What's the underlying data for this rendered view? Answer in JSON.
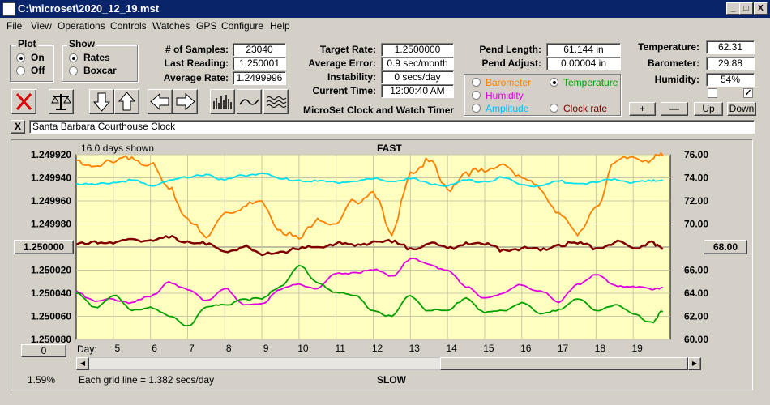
{
  "window": {
    "title": "C:\\microset\\2020_12_19.mst",
    "controls": [
      "_",
      "□",
      "X"
    ]
  },
  "menu": [
    "File",
    "View",
    "Operations",
    "Controls",
    "Watches",
    "GPS",
    "Configure",
    "Help"
  ],
  "plot_group": {
    "title": "Plot",
    "options": [
      "On",
      "Off"
    ],
    "selected": "On"
  },
  "show_group": {
    "title": "Show",
    "options": [
      "Rates",
      "Boxcar"
    ],
    "selected": "Rates"
  },
  "stats": {
    "samples_label": "# of Samples:",
    "samples_value": "23040",
    "last_label": "Last Reading:",
    "last_value": "1.250001",
    "avg_label": "Average Rate:",
    "avg_value": "1.2499996",
    "target_label": "Target Rate:",
    "target_value": "1.2500000",
    "err_label": "Average Error:",
    "err_value": "0.9 sec/month",
    "instab_label": "Instability:",
    "instab_value": "0 secs/day",
    "time_label": "Current Time:",
    "time_value": "12:00:40 AM",
    "app_caption": "MicroSet Clock and Watch Timer",
    "pend_len_label": "Pend Length:",
    "pend_len_value": "61.144 in",
    "pend_adj_label": "Pend Adjust:",
    "pend_adj_value": "0.00004 in",
    "temp_label": "Temperature:",
    "temp_value": "62.31",
    "baro_label": "Barometer:",
    "baro_value": "29.88",
    "hum_label": "Humidity:",
    "hum_value": "54%"
  },
  "series_selector": {
    "items": [
      {
        "label": "Barometer",
        "color": "#ff8000",
        "selected": false
      },
      {
        "label": "Temperature",
        "color": "#00a000",
        "selected": true
      },
      {
        "label": "Humidity",
        "color": "#e000e0",
        "selected": false
      },
      {
        "label": "Amplitude",
        "color": "#00c0ff",
        "selected": false
      },
      {
        "label": "Clock rate",
        "color": "#800000",
        "selected": false
      }
    ]
  },
  "scale_buttons": [
    "+",
    "—",
    "Up",
    "Down"
  ],
  "toolbar_icons": [
    "stop-icon",
    "balance-icon",
    "arrow-down-icon",
    "arrow-up-icon",
    "arrow-left-icon",
    "arrow-right-icon",
    "bars-icon",
    "wave-icon",
    "waves-icon"
  ],
  "description": {
    "close_label": "X",
    "value": "Santa Barbara Courthouse Clock"
  },
  "plot": {
    "days_shown": "16.0 days shown",
    "top_label": "FAST",
    "bottom_label": "SLOW",
    "left_ref_button": "1.250000",
    "right_ref_button": "68.00",
    "offset_button": "0",
    "percent": "1.59%",
    "grid_note": "Each grid line = 1.382 secs/day",
    "day_label": "Day:"
  },
  "chart_data": {
    "type": "line",
    "x": [
      4.0,
      4.5,
      5.0,
      5.5,
      6.0,
      6.5,
      7.0,
      7.5,
      8.0,
      8.5,
      9.0,
      9.5,
      10.0,
      10.5,
      11.0,
      11.5,
      12.0,
      12.5,
      13.0,
      13.5,
      14.0,
      14.5,
      15.0,
      15.5,
      16.0,
      16.5,
      17.0,
      17.5,
      18.0,
      18.5,
      19.0,
      19.5,
      19.8
    ],
    "xlabel": "Day:",
    "xticks": [
      5,
      6,
      7,
      8,
      9,
      10,
      11,
      12,
      13,
      14,
      15,
      16,
      17,
      18,
      19
    ],
    "xlim": [
      4.0,
      20.0
    ],
    "left_axis": {
      "ticks": [
        "1.249920",
        "1.249940",
        "1.249960",
        "1.249980",
        "1.250000",
        "1.250020",
        "1.250040",
        "1.250060",
        "1.250080"
      ],
      "inverted": true
    },
    "right_axis": {
      "ticks": [
        "76.00",
        "74.00",
        "72.00",
        "70.00",
        "68.00",
        "66.00",
        "64.00",
        "62.00",
        "60.00"
      ],
      "ylim": [
        60,
        76
      ]
    },
    "series": [
      {
        "name": "Barometer",
        "color": "#ff8000",
        "values": [
          75.5,
          75.0,
          75.3,
          75.8,
          75.2,
          73.0,
          70.5,
          68.8,
          71.0,
          71.5,
          72.0,
          69.5,
          68.7,
          70.5,
          70.0,
          72.0,
          72.8,
          69.0,
          74.5,
          75.4,
          73.0,
          74.5,
          74.5,
          75.2,
          74.0,
          73.0,
          71.0,
          69.0,
          71.5,
          75.3,
          75.8,
          75.6,
          75.9
        ]
      },
      {
        "name": "Amplitude",
        "color": "#00e0f0",
        "values": [
          73.5,
          73.4,
          73.6,
          73.8,
          73.3,
          73.8,
          74.0,
          74.3,
          73.8,
          74.2,
          74.4,
          73.9,
          73.8,
          73.7,
          73.6,
          73.7,
          73.9,
          73.7,
          73.9,
          73.5,
          73.3,
          73.8,
          73.7,
          74.0,
          73.4,
          73.3,
          73.7,
          73.5,
          73.6,
          73.9,
          73.6,
          73.7,
          73.8
        ]
      },
      {
        "name": "Clock rate",
        "color": "#800000",
        "values": [
          68.2,
          68.5,
          68.3,
          68.7,
          68.6,
          68.8,
          68.5,
          68.2,
          67.6,
          68.0,
          67.3,
          67.6,
          67.8,
          68.0,
          68.3,
          68.1,
          68.5,
          68.4,
          67.9,
          68.3,
          67.9,
          68.4,
          68.2,
          67.8,
          67.9,
          67.7,
          68.2,
          68.3,
          67.9,
          68.4,
          67.9,
          68.5,
          67.8
        ]
      },
      {
        "name": "Humidity",
        "color": "#e000e0",
        "values": [
          64.2,
          63.3,
          63.5,
          63.2,
          63.7,
          65.0,
          64.3,
          63.4,
          64.4,
          63.0,
          63.1,
          64.3,
          64.8,
          64.4,
          65.7,
          65.8,
          66.0,
          65.5,
          67.0,
          66.5,
          66.0,
          64.5,
          63.6,
          64.0,
          64.7,
          64.2,
          63.2,
          64.8,
          65.6,
          64.7,
          64.6,
          64.3,
          64.5
        ]
      },
      {
        "name": "Temperature",
        "color": "#00a000",
        "values": [
          64.0,
          62.8,
          63.8,
          62.5,
          62.8,
          62.0,
          61.2,
          62.8,
          63.0,
          63.5,
          63.5,
          64.6,
          66.4,
          64.9,
          64.1,
          63.8,
          62.5,
          62.0,
          63.8,
          62.5,
          62.5,
          63.6,
          62.3,
          62.5,
          63.2,
          62.2,
          62.6,
          63.5,
          62.5,
          63.0,
          62.2,
          61.5,
          62.4
        ]
      }
    ]
  }
}
